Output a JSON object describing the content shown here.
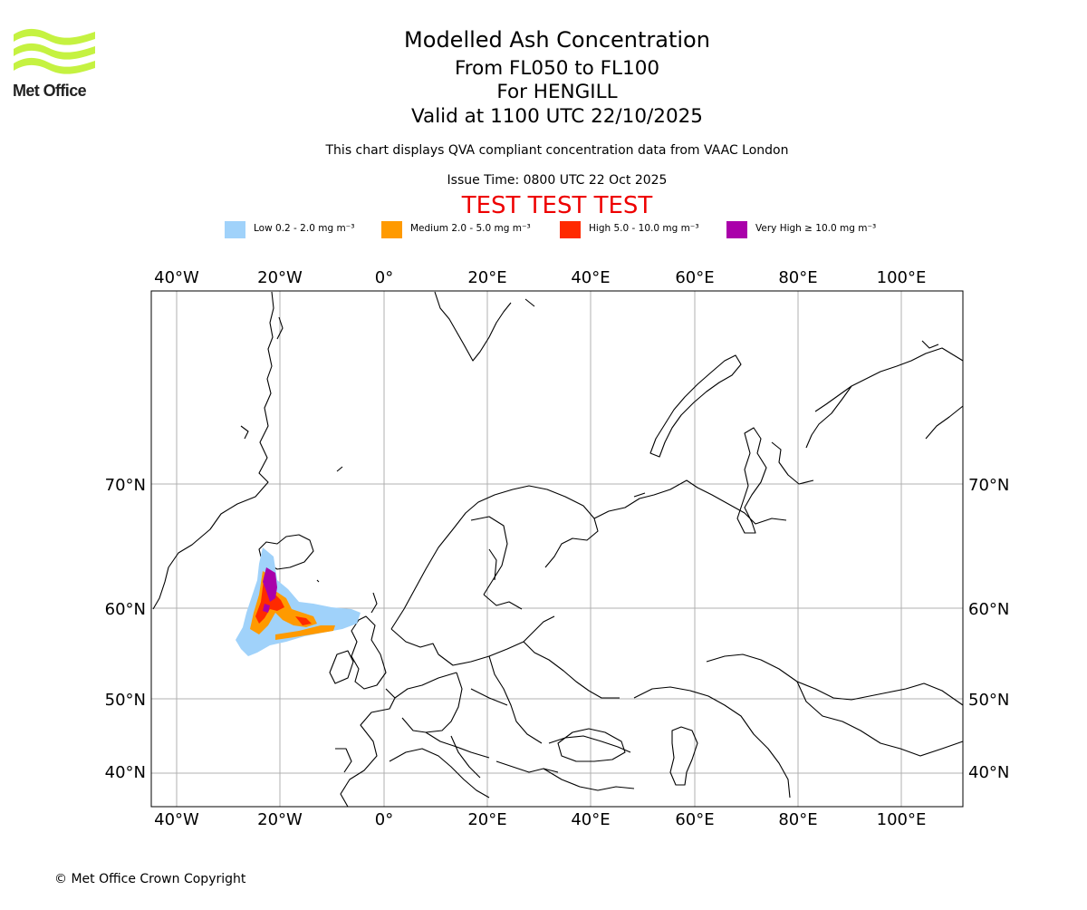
{
  "header": {
    "title": "Modelled Ash Concentration",
    "levels": "From FL050 to FL100",
    "volcano": "For HENGILL",
    "valid": "Valid at 1100 UTC 22/10/2025",
    "compliance_note": "This chart displays QVA compliant concentration data from VAAC London",
    "issue_time": "Issue Time: 0800 UTC 22 Oct 2025",
    "test_banner": "TEST TEST TEST",
    "test_color": "#ee0000"
  },
  "logo": {
    "text": "Met Office",
    "color": "#c5f241"
  },
  "legend": [
    {
      "label": "Low 0.2 - 2.0 mg m⁻³",
      "color": "#a0d2fa"
    },
    {
      "label": "Medium 2.0 - 5.0 mg m⁻³",
      "color": "#ff9a00"
    },
    {
      "label": "High 5.0 - 10.0 mg m⁻³",
      "color": "#ff2a00"
    },
    {
      "label": "Very High ≥ 10.0 mg m⁻³",
      "color": "#aa00aa"
    }
  ],
  "map": {
    "lon_ticks": [
      "40°W",
      "20°W",
      "0°",
      "20°E",
      "40°E",
      "60°E",
      "80°E",
      "100°E"
    ],
    "lat_ticks": [
      "70°N",
      "60°N",
      "50°N",
      "40°N"
    ],
    "gridlines": true
  },
  "footer": {
    "copyright": "© Met Office Crown Copyright"
  }
}
